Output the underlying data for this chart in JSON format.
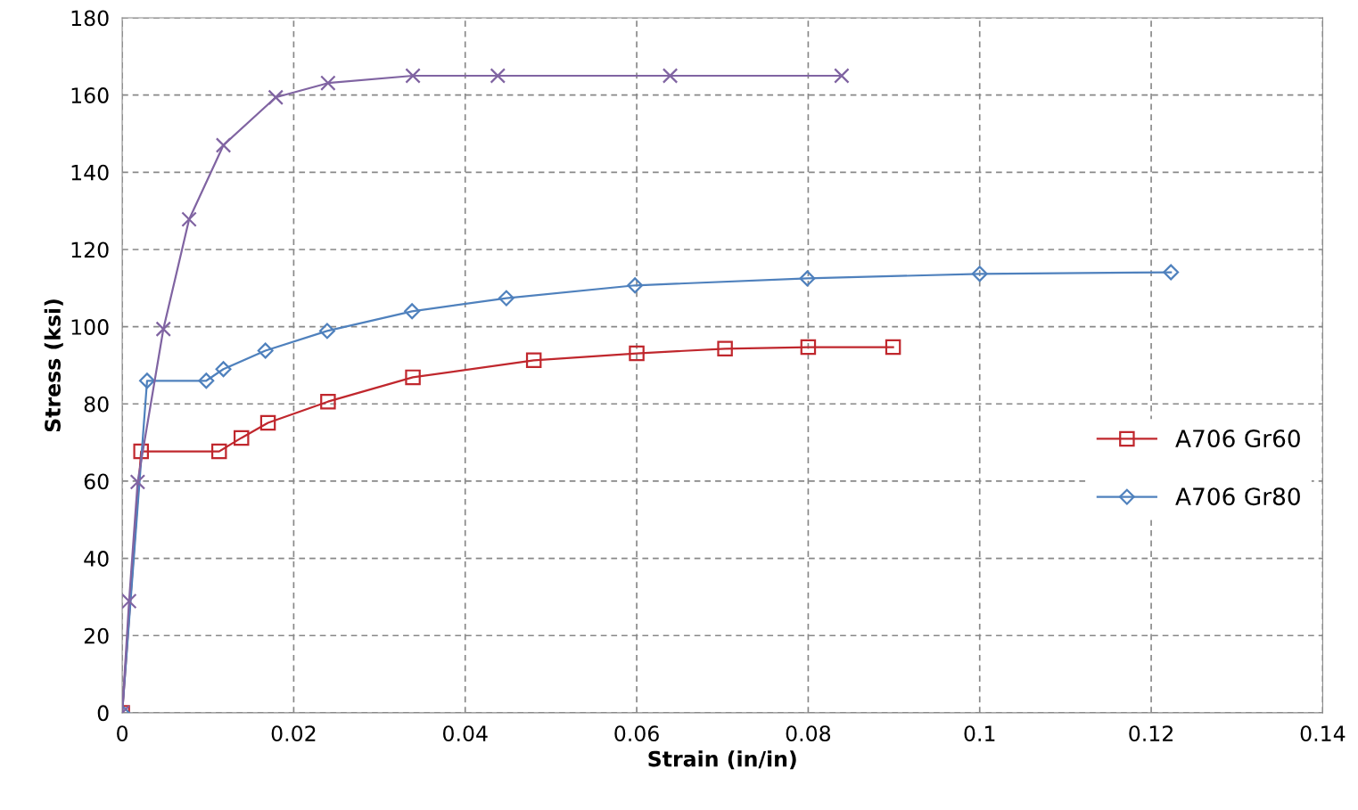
{
  "chart_data": {
    "type": "line",
    "xlabel": "Strain (in/in)",
    "ylabel": "Stress (ksi)",
    "xlim": [
      0,
      0.14
    ],
    "xticks": [
      0,
      0.02,
      0.04,
      0.06,
      0.08,
      0.1,
      0.12,
      0.14
    ],
    "ylim": [
      0,
      180
    ],
    "yticks": [
      0,
      20,
      40,
      60,
      80,
      100,
      120,
      140,
      160,
      180
    ],
    "grid": true,
    "legend": "right",
    "line_style": "solid",
    "series": [
      {
        "name": "A706 Gr60",
        "color": "#c0272d",
        "marker": "square",
        "x": [
          0,
          0.0022,
          0.0113,
          0.0139,
          0.017,
          0.024,
          0.0339,
          0.048,
          0.06,
          0.0703,
          0.08,
          0.0899
        ],
        "values": [
          0,
          67.7,
          67.7,
          71.2,
          75.1,
          80.6,
          86.9,
          91.3,
          93.1,
          94.3,
          94.7,
          94.7
        ]
      },
      {
        "name": "A706 Gr80",
        "color": "#4f81bd",
        "marker": "diamond",
        "x": [
          0,
          0.0029,
          0.0098,
          0.0118,
          0.0167,
          0.0239,
          0.0338,
          0.0448,
          0.0598,
          0.0799,
          0.1,
          0.1223
        ],
        "values": [
          0,
          86,
          86,
          89,
          93.8,
          98.9,
          104,
          107.4,
          110.7,
          112.5,
          113.7,
          114.1
        ]
      },
      {
        "color": "#8064a2",
        "marker": "cross",
        "x": [
          0,
          0.0008,
          0.0018,
          0.0048,
          0.0078,
          0.0118,
          0.0179,
          0.024,
          0.0339,
          0.0438,
          0.0639,
          0.0839
        ],
        "values": [
          0,
          28.9,
          59.8,
          99.4,
          127.8,
          147,
          159.4,
          163.1,
          165,
          165,
          165,
          165
        ]
      }
    ]
  }
}
